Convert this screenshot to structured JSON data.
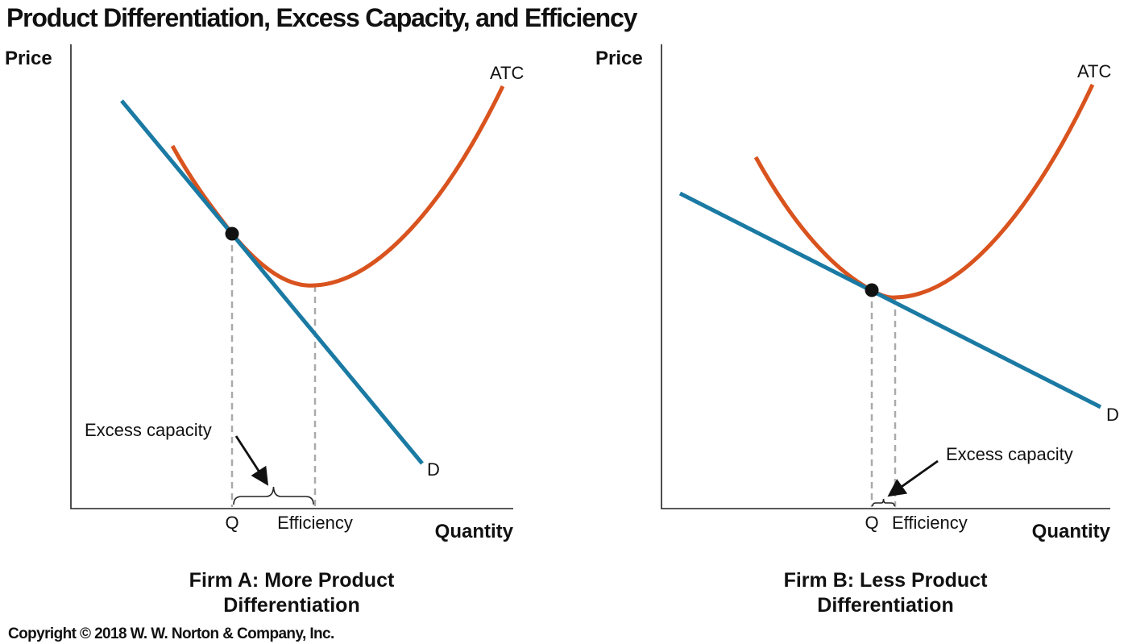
{
  "title": "Product Differentiation, Excess Capacity, and Efficiency",
  "copyright": "Copyright © 2018 W. W. Norton & Company, Inc.",
  "panels": [
    {
      "y_axis_label": "Price",
      "x_axis_label": "Quantity",
      "atc_label": "ATC",
      "demand_label": "D",
      "annotation": "Excess capacity",
      "q_label": "Q",
      "efficiency_label": "Efficiency",
      "caption_line1": "Firm A: More Product",
      "caption_line2": "Differentiation"
    },
    {
      "y_axis_label": "Price",
      "x_axis_label": "Quantity",
      "atc_label": "ATC",
      "demand_label": "D",
      "annotation": "Excess capacity",
      "q_label": "Q",
      "efficiency_label": "Efficiency",
      "caption_line1": "Firm B: Less Product",
      "caption_line2": "Differentiation"
    }
  ],
  "colors": {
    "demand": "#1a7aa3",
    "atc": "#d9531e",
    "guides": "#aaaaaa"
  }
}
